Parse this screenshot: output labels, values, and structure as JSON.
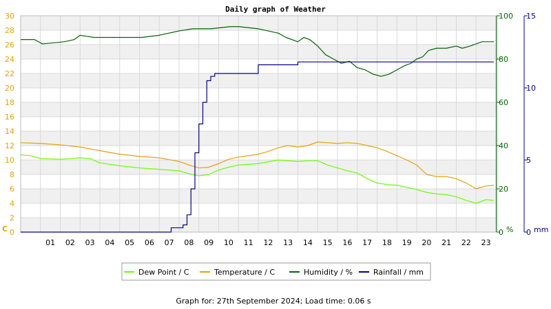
{
  "chart_data": {
    "type": "line",
    "title": "Daily graph of Weather",
    "footer": "Graph for: 27th September 2024; Load time: 0.06 s",
    "x_tick_labels": [
      "01",
      "02",
      "03",
      "04",
      "05",
      "06",
      "07",
      "08",
      "09",
      "10",
      "11",
      "12",
      "13",
      "14",
      "15",
      "16",
      "17",
      "18",
      "19",
      "20",
      "21",
      "22",
      "23"
    ],
    "xlim": [
      0,
      24
    ],
    "grid": true,
    "legend_position": "bottom-center",
    "axes": {
      "left": {
        "unit_label": "C",
        "ylim": [
          0,
          30
        ],
        "ticks": [
          0,
          2,
          4,
          6,
          8,
          10,
          12,
          14,
          16,
          18,
          20,
          22,
          24,
          26,
          28,
          30
        ],
        "color": "#e8a000"
      },
      "right1": {
        "unit_label": "%",
        "ylim": [
          0,
          100
        ],
        "ticks": [
          0,
          20,
          40,
          60,
          80,
          100
        ],
        "color": "#006400"
      },
      "right2": {
        "unit_label": "mm",
        "ylim": [
          0,
          15
        ],
        "ticks": [
          0,
          5,
          10,
          15
        ],
        "color": "#00008b"
      }
    },
    "series": [
      {
        "name": "Dew Point / C",
        "axis": "left",
        "color": "#66ff00",
        "x": [
          0,
          0.5,
          1,
          2,
          3,
          3.5,
          4,
          5,
          6,
          7,
          8,
          8.5,
          9,
          9.5,
          10,
          10.5,
          11,
          12,
          13,
          14,
          14.5,
          15,
          15.5,
          16,
          16.5,
          17,
          17.5,
          18,
          18.5,
          19,
          19.5,
          20,
          20.5,
          21,
          21.5,
          22,
          22.5,
          23,
          23.5,
          23.9
        ],
        "y": [
          10.7,
          10.6,
          10.2,
          10.1,
          10.3,
          10.2,
          9.6,
          9.2,
          8.9,
          8.7,
          8.5,
          8.1,
          7.8,
          8.0,
          8.6,
          9.0,
          9.3,
          9.5,
          10.0,
          9.8,
          9.9,
          9.9,
          9.3,
          8.9,
          8.5,
          8.2,
          7.4,
          6.8,
          6.6,
          6.5,
          6.2,
          5.9,
          5.5,
          5.3,
          5.2,
          4.9,
          4.4,
          4.0,
          4.5,
          4.4
        ]
      },
      {
        "name": "Temperature / C",
        "axis": "left",
        "color": "#e8a000",
        "x": [
          0,
          1,
          2,
          3,
          4,
          5,
          6,
          7,
          8,
          8.5,
          9,
          9.5,
          10,
          10.5,
          11,
          12,
          12.5,
          13,
          13.5,
          14,
          14.5,
          15,
          15.5,
          16,
          16.5,
          17,
          17.5,
          18,
          18.5,
          19,
          19.5,
          20,
          20.5,
          21,
          21.5,
          22,
          22.5,
          23,
          23.5,
          23.9
        ],
        "y": [
          12.4,
          12.3,
          12.1,
          11.8,
          11.3,
          10.8,
          10.5,
          10.3,
          9.8,
          9.3,
          8.9,
          9.0,
          9.5,
          10.1,
          10.4,
          10.8,
          11.2,
          11.7,
          12.0,
          11.8,
          12.0,
          12.5,
          12.4,
          12.3,
          12.4,
          12.3,
          12.0,
          11.7,
          11.2,
          10.6,
          10.0,
          9.3,
          8.0,
          7.7,
          7.7,
          7.4,
          6.8,
          6.0,
          6.4,
          6.5
        ]
      },
      {
        "name": "Humidity / %",
        "axis": "right1",
        "color": "#006400",
        "x": [
          0,
          0.7,
          1.1,
          2.2,
          2.7,
          3.0,
          3.7,
          4.7,
          5.4,
          6.1,
          7.0,
          8.0,
          8.7,
          9.6,
          10.6,
          11.0,
          12.0,
          12.5,
          13.0,
          13.4,
          14.0,
          14.3,
          14.6,
          15.0,
          15.4,
          15.8,
          16.2,
          16.6,
          17.0,
          17.4,
          17.8,
          18.2,
          18.6,
          19.0,
          19.4,
          19.7,
          20.0,
          20.3,
          20.6,
          21.0,
          21.5,
          22.0,
          22.3,
          22.7,
          23.0,
          23.3,
          23.6,
          23.9
        ],
        "y": [
          89,
          89,
          87,
          88,
          89,
          91,
          90,
          90,
          90,
          90,
          91,
          93,
          94,
          94,
          95,
          95,
          94,
          93,
          92,
          90,
          88,
          90,
          89,
          86,
          82,
          80,
          78,
          79,
          76,
          75,
          73,
          72,
          73,
          75,
          77,
          78,
          80,
          81,
          84,
          85,
          85,
          86,
          85,
          86,
          87,
          88,
          88,
          88
        ]
      },
      {
        "name": "Rainfall / mm",
        "axis": "right2",
        "color": "#00008b",
        "x": [
          0,
          7.0,
          7.3,
          7.6,
          7.8,
          8.0,
          8.2,
          8.4,
          8.6,
          8.8,
          9.0,
          9.2,
          9.4,
          9.6,
          9.8,
          10.0,
          11.5,
          12.0,
          13.0,
          14.0,
          15.0,
          23.9
        ],
        "y": [
          0,
          0,
          0,
          0.3,
          0.3,
          0.3,
          0.5,
          1.2,
          3.0,
          5.5,
          7.5,
          9.0,
          10.5,
          10.8,
          11.0,
          11.0,
          11.0,
          11.6,
          11.6,
          11.8,
          11.8,
          11.8
        ]
      }
    ]
  }
}
